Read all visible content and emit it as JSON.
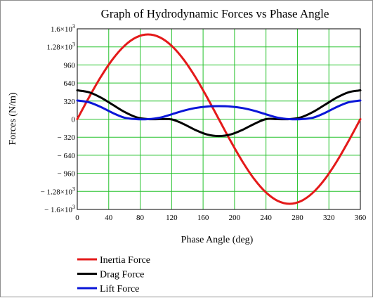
{
  "chart_data": {
    "type": "line",
    "title": "Graph of Hydrodynamic Forces vs Phase Angle",
    "xlabel": "Phase Angle (deg)",
    "ylabel": "Forces (N/m)",
    "xlim": [
      0,
      360
    ],
    "ylim": [
      -1600,
      1600
    ],
    "grid": true,
    "legend_position": "bottom-left",
    "x_ticks": [
      0,
      40,
      80,
      120,
      160,
      200,
      240,
      280,
      320,
      360
    ],
    "x_tick_labels": [
      "0",
      "40",
      "80",
      "120",
      "160",
      "200",
      "240",
      "280",
      "320",
      "360"
    ],
    "y_ticks": [
      1600,
      1280,
      960,
      640,
      320,
      0,
      -320,
      -640,
      -960,
      -1280,
      -1600
    ],
    "y_tick_labels": [
      {
        "base": "1.6×10",
        "exp": "3"
      },
      {
        "base": "1.28×10",
        "exp": "3"
      },
      {
        "base": "960",
        "exp": ""
      },
      {
        "base": "640",
        "exp": ""
      },
      {
        "base": "320",
        "exp": ""
      },
      {
        "base": "0",
        "exp": ""
      },
      {
        "base": "− 320",
        "exp": ""
      },
      {
        "base": "− 640",
        "exp": ""
      },
      {
        "base": "− 960",
        "exp": ""
      },
      {
        "base": "− 1.28×10",
        "exp": "3"
      },
      {
        "base": "− 1.6×10",
        "exp": "3"
      }
    ],
    "x": [
      0,
      15,
      30,
      45,
      60,
      75,
      90,
      105,
      120,
      135,
      150,
      165,
      180,
      195,
      210,
      225,
      240,
      255,
      270,
      285,
      300,
      315,
      330,
      345,
      360
    ],
    "series": [
      {
        "name": "Inertia Force",
        "color": "#e41a1a",
        "values": [
          0,
          388,
          750,
          1061,
          1299,
          1449,
          1500,
          1449,
          1299,
          1061,
          750,
          388,
          0,
          -388,
          -750,
          -1061,
          -1299,
          -1449,
          -1500,
          -1449,
          -1299,
          -1061,
          -750,
          -388,
          0
        ]
      },
      {
        "name": "Drag Force",
        "color": "#000000",
        "values": [
          510,
          476,
          382,
          255,
          128,
          34,
          0,
          0,
          -5,
          -85,
          -191,
          -272,
          -300,
          -272,
          -191,
          -85,
          0,
          0,
          0,
          34,
          128,
          255,
          382,
          476,
          510
        ]
      },
      {
        "name": "Lift Force",
        "color": "#0a16d8",
        "values": [
          330,
          298,
          215,
          110,
          26,
          0,
          0,
          26,
          85,
          149,
          197,
          223,
          230,
          223,
          197,
          149,
          85,
          26,
          0,
          0,
          26,
          110,
          215,
          298,
          330
        ]
      }
    ]
  }
}
